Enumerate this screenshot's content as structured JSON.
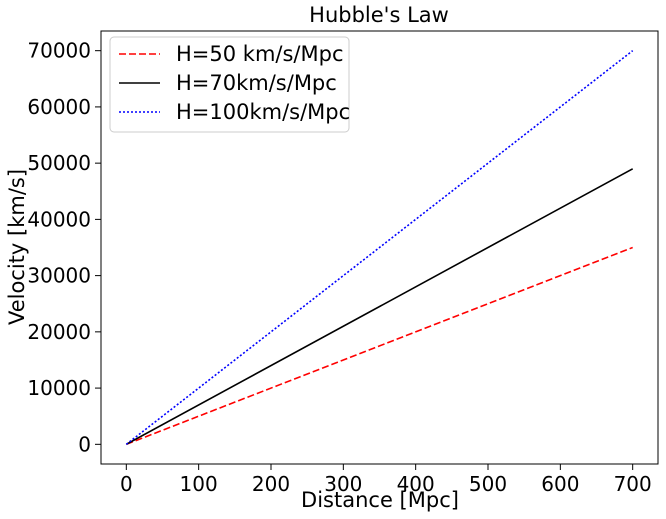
{
  "chart_data": {
    "type": "line",
    "title": "Hubble's Law",
    "xlabel": "Distance [Mpc]",
    "ylabel": "Velocity [km/s]",
    "xlim": [
      -35,
      735
    ],
    "ylim": [
      -3500,
      73500
    ],
    "xticks": [
      0,
      100,
      200,
      300,
      400,
      500,
      600,
      700
    ],
    "yticks": [
      0,
      10000,
      20000,
      30000,
      40000,
      50000,
      60000,
      70000
    ],
    "grid": false,
    "legend_position": "upper-left",
    "series": [
      {
        "name": "H=50 km/s/Mpc",
        "x": [
          0,
          700
        ],
        "y": [
          0,
          35000
        ],
        "color": "#ff0000",
        "style": "dashed"
      },
      {
        "name": "H=70km/s/Mpc",
        "x": [
          0,
          700
        ],
        "y": [
          0,
          49000
        ],
        "color": "#000000",
        "style": "solid"
      },
      {
        "name": "H=100km/s/Mpc",
        "x": [
          0,
          700
        ],
        "y": [
          0,
          70000
        ],
        "color": "#0000ff",
        "style": "dotted"
      }
    ]
  }
}
